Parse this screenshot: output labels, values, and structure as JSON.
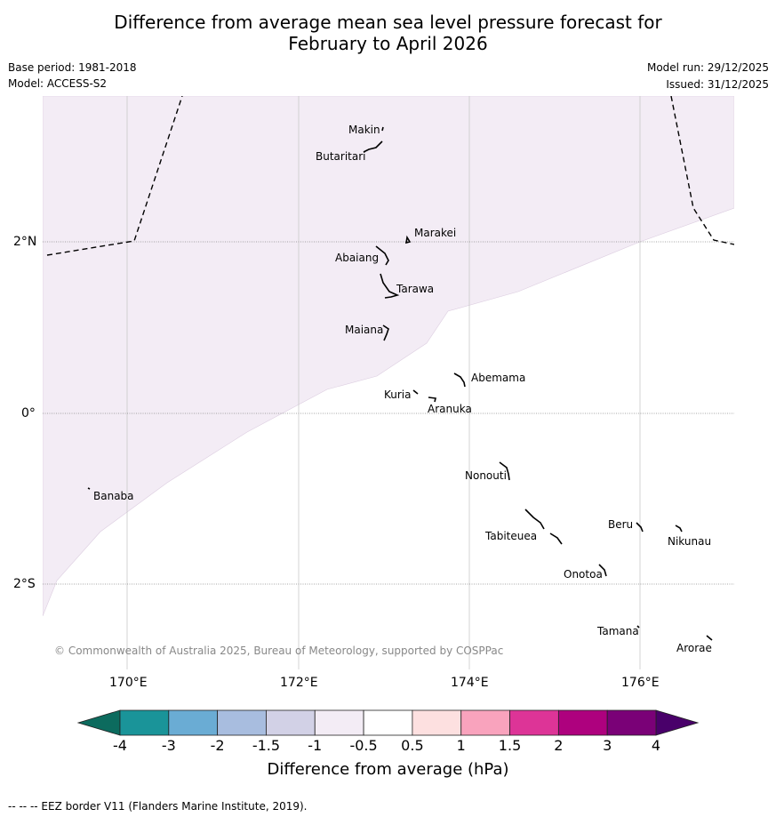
{
  "title": {
    "line1": "Difference from average mean sea level pressure forecast for",
    "line2": "February to April 2026"
  },
  "meta": {
    "base_period": "Base period: 1981-2018",
    "model": "Model: ACCESS-S2",
    "model_run": "Model run: 29/12/2025",
    "issued": "Issued: 31/12/2025"
  },
  "map": {
    "lon_labels": [
      "170°E",
      "172°E",
      "174°E",
      "176°E"
    ],
    "lat_labels": [
      "2°N",
      "0°",
      "2°S"
    ],
    "islands": [
      "Makin",
      "Butaritari",
      "Marakei",
      "Abaiang",
      "Tarawa",
      "Maiana",
      "Abemama",
      "Kuria",
      "Aranuka",
      "Banaba",
      "Nonouti",
      "Beru",
      "Nikunau",
      "Tabiteuea",
      "Onotoa",
      "Tamana",
      "Arorae"
    ],
    "shaded_category": "-1 to -0.5 hPa",
    "copyright": "© Commonwealth of Australia 2025, Bureau of Meteorology, supported by COSPPac"
  },
  "legend": {
    "ticks": [
      "-4",
      "-3",
      "-2",
      "-1.5",
      "-1",
      "-0.5",
      "0.5",
      "1",
      "1.5",
      "2",
      "3",
      "4"
    ],
    "colors": [
      "#1a9499",
      "#6aacd4",
      "#a8bddf",
      "#d2d1e6",
      "#f3ecf5",
      "#ffffff",
      "#fde0e0",
      "#f9a3bd",
      "#dd3497",
      "#ae017e",
      "#7a0177"
    ],
    "extend_low_color": "#0c6b5e",
    "extend_high_color": "#49006a",
    "title": "Difference from average (hPa)"
  },
  "footnote": "--  --  -- EEZ border V11 (Flanders Marine Institute, 2019)."
}
